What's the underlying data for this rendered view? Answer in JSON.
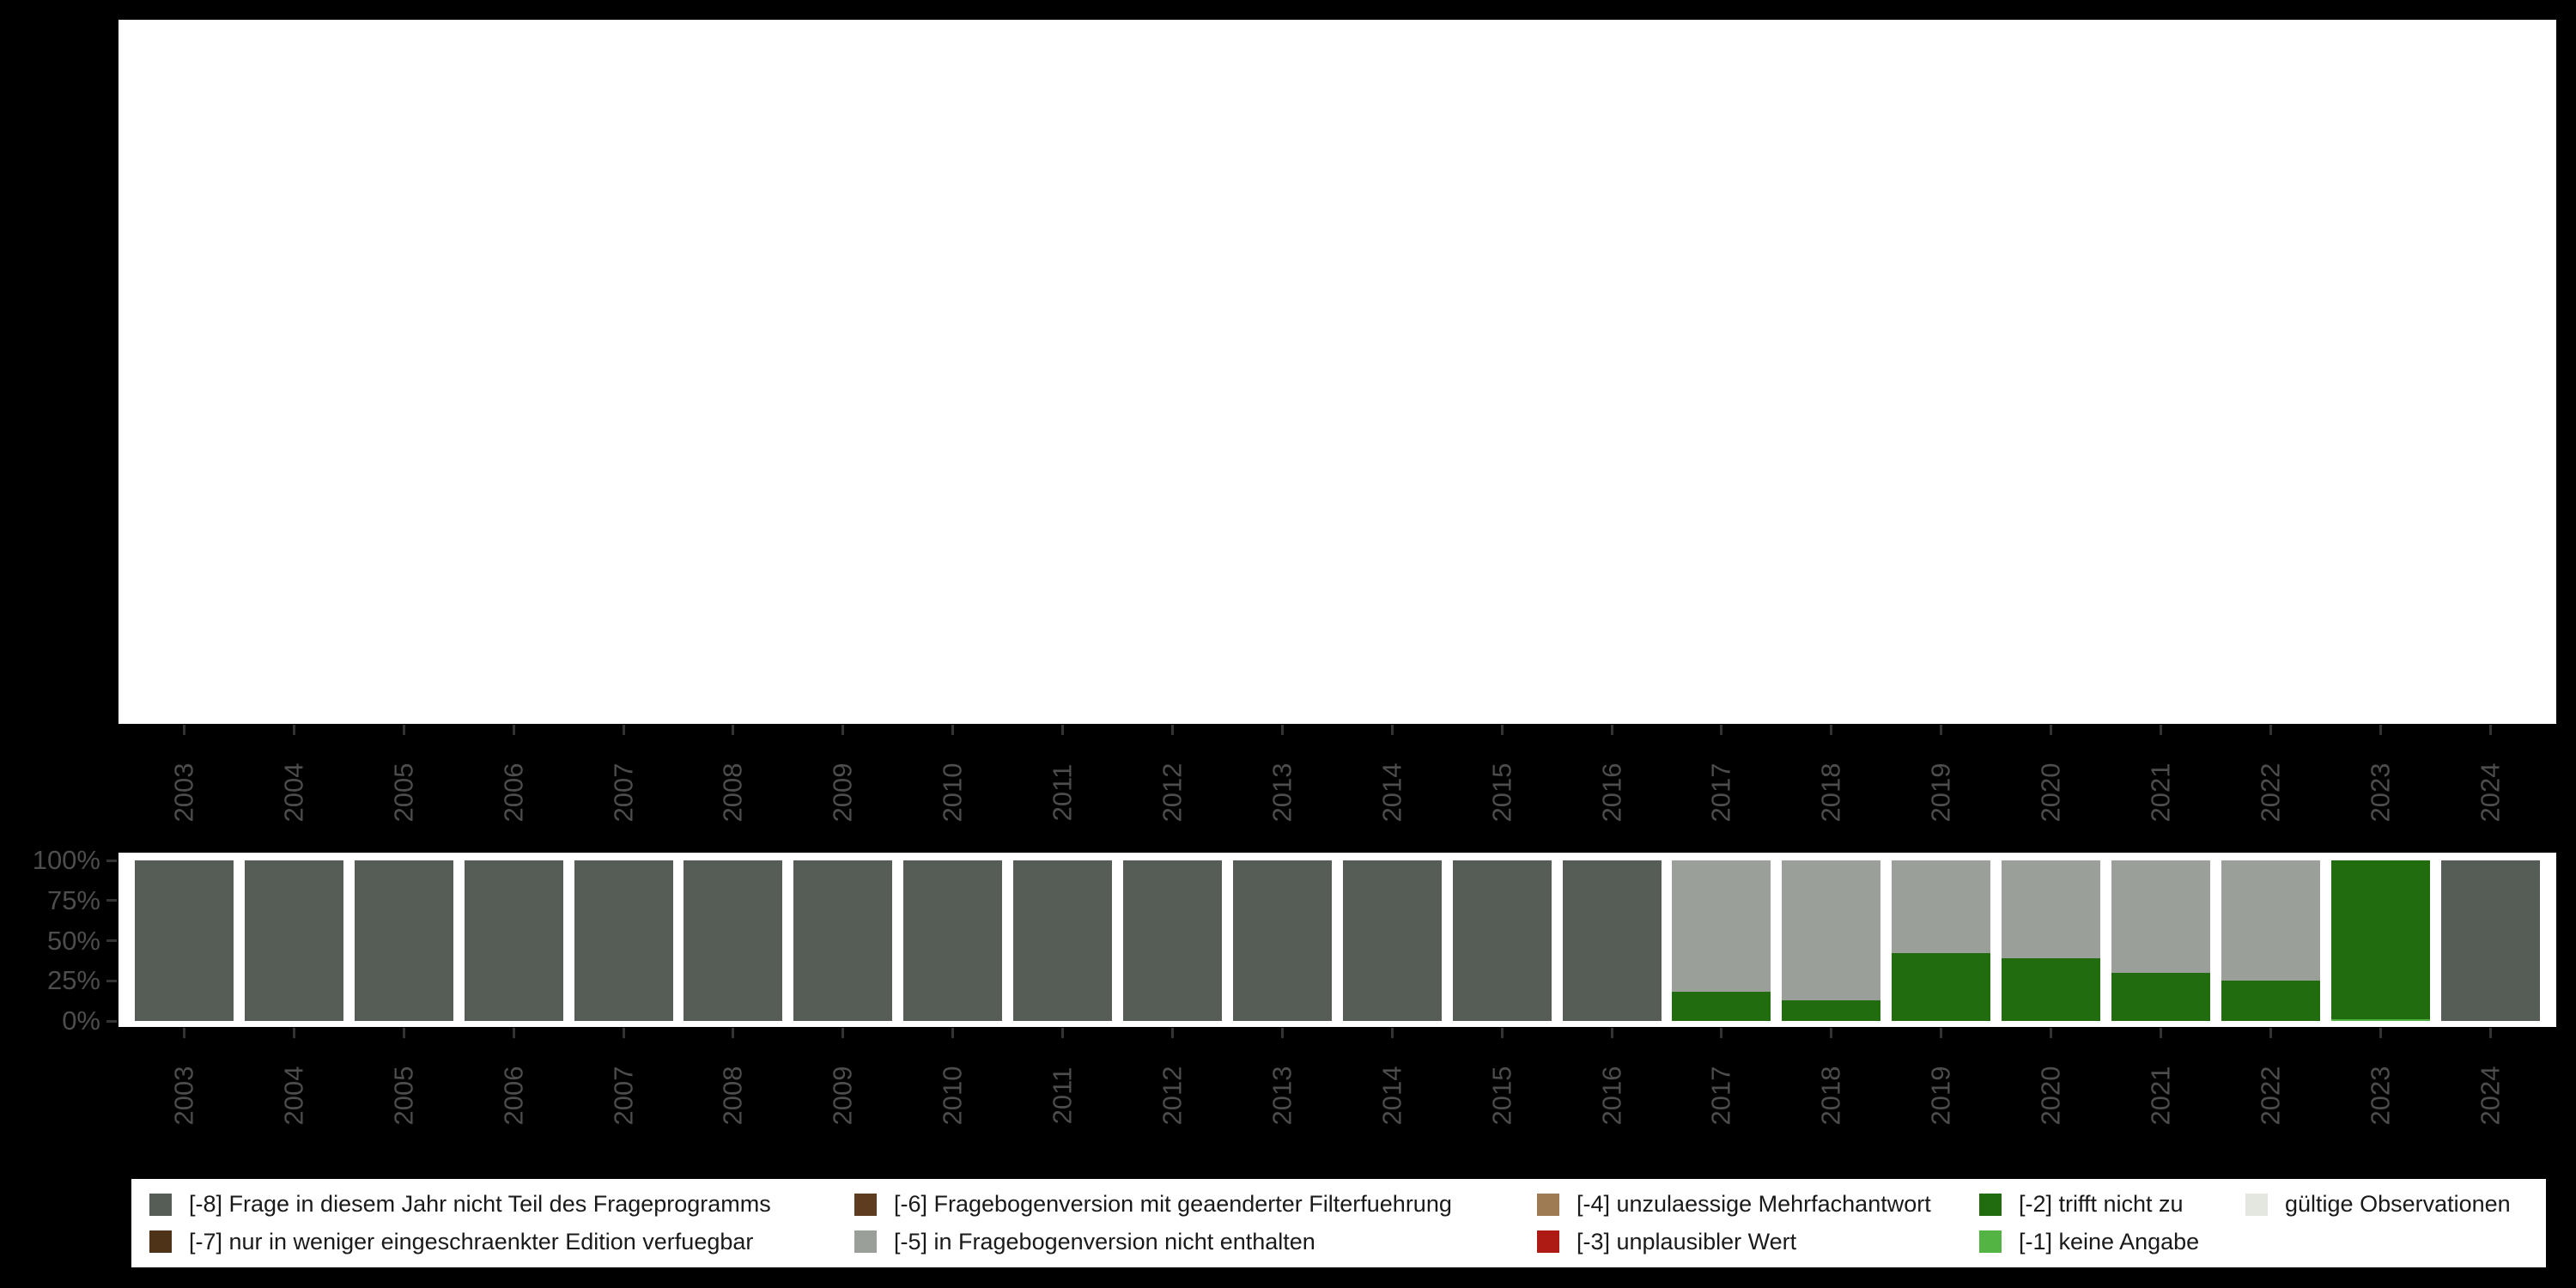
{
  "colors": {
    "background": "#000000",
    "panel_background": "#ffffff",
    "axis_text": "#4d4d4d",
    "axis_tick": "#333333",
    "legend_text": "#1a1a1a"
  },
  "chart_data": {
    "type": "bar",
    "stacked": true,
    "title": "",
    "xlabel": "",
    "ylabel": "",
    "ylim": [
      0,
      100
    ],
    "y_tick_labels": [
      "100%",
      "75%",
      "50%",
      "25%",
      "0%"
    ],
    "categories": [
      "2003",
      "2004",
      "2005",
      "2006",
      "2007",
      "2008",
      "2009",
      "2010",
      "2011",
      "2012",
      "2013",
      "2014",
      "2015",
      "2016",
      "2017",
      "2018",
      "2019",
      "2020",
      "2021",
      "2022",
      "2023",
      "2024"
    ],
    "series": [
      {
        "name": "[-8] Frage in diesem Jahr nicht Teil des Frageprogramms",
        "color": "#565D56",
        "values": [
          100,
          100,
          100,
          100,
          100,
          100,
          100,
          100,
          100,
          100,
          100,
          100,
          100,
          100,
          0,
          0,
          0,
          0,
          0,
          0,
          0,
          100
        ]
      },
      {
        "name": "[-7] nur in weniger eingeschraenkter Edition verfuegbar",
        "color": "#4F3318",
        "values": [
          0,
          0,
          0,
          0,
          0,
          0,
          0,
          0,
          0,
          0,
          0,
          0,
          0,
          0,
          0,
          0,
          0,
          0,
          0,
          0,
          0,
          0
        ]
      },
      {
        "name": "[-6] Fragebogenversion mit geaenderter Filterfuehrung",
        "color": "#5E3C20",
        "values": [
          0,
          0,
          0,
          0,
          0,
          0,
          0,
          0,
          0,
          0,
          0,
          0,
          0,
          0,
          0,
          0,
          0,
          0,
          0,
          0,
          0,
          0
        ]
      },
      {
        "name": "[-5] in Fragebogenversion nicht enthalten",
        "color": "#9AA099",
        "values": [
          0,
          0,
          0,
          0,
          0,
          0,
          0,
          0,
          0,
          0,
          0,
          0,
          0,
          0,
          82,
          87,
          58,
          61,
          70,
          75,
          0,
          0
        ]
      },
      {
        "name": "[-4] unzulaessige Mehrfachantwort",
        "color": "#9E7B52",
        "values": [
          0,
          0,
          0,
          0,
          0,
          0,
          0,
          0,
          0,
          0,
          0,
          0,
          0,
          0,
          0,
          0,
          0,
          0,
          0,
          0,
          0,
          0
        ]
      },
      {
        "name": "[-3] unplausibler Wert",
        "color": "#AE1B15",
        "values": [
          0,
          0,
          0,
          0,
          0,
          0,
          0,
          0,
          0,
          0,
          0,
          0,
          0,
          0,
          0,
          0,
          0,
          0,
          0,
          0,
          0,
          0
        ]
      },
      {
        "name": "[-2] trifft nicht zu",
        "color": "#226C10",
        "values": [
          0,
          0,
          0,
          0,
          0,
          0,
          0,
          0,
          0,
          0,
          0,
          0,
          0,
          0,
          18,
          13,
          42,
          39,
          30,
          25,
          99,
          0
        ]
      },
      {
        "name": "[-1] keine Angabe",
        "color": "#54B443",
        "values": [
          0,
          0,
          0,
          0,
          0,
          0,
          0,
          0,
          0,
          0,
          0,
          0,
          0,
          0,
          0,
          0,
          0,
          0,
          0,
          0,
          1,
          0
        ]
      },
      {
        "name": "gültige Observationen",
        "color": "#E4E6E0",
        "values": [
          0,
          0,
          0,
          0,
          0,
          0,
          0,
          0,
          0,
          0,
          0,
          0,
          0,
          0,
          0,
          0,
          0,
          0,
          0,
          0,
          0,
          0
        ]
      }
    ],
    "layout_hints": {
      "top_panel_empty": true,
      "x_axis_labels": "rotated 90° (top and bottom of bar panel)",
      "legend_position": "bottom",
      "legend_layout": "2 rows x 5 columns, column-major",
      "grid": "off"
    }
  }
}
